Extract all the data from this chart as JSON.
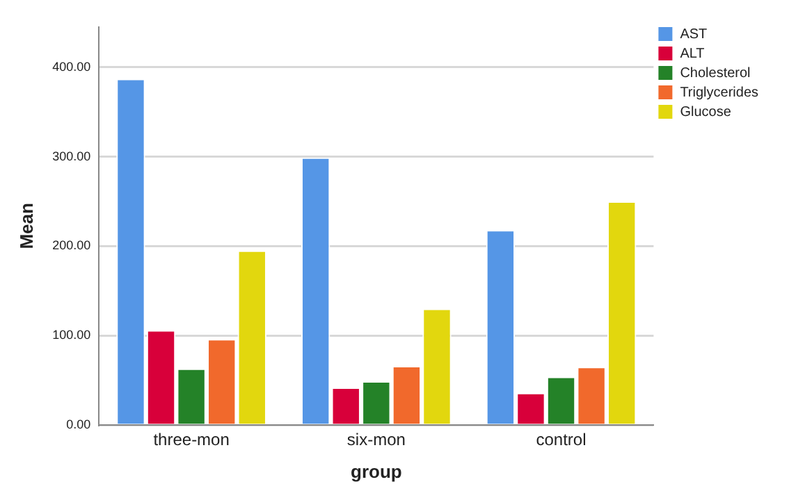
{
  "chart_data": {
    "type": "bar",
    "xlabel": "group",
    "ylabel": "Mean",
    "categories": [
      "three-mon",
      "six-mon",
      "control"
    ],
    "series": [
      {
        "name": "AST",
        "color": "#5596e6",
        "values": [
          387,
          299,
          218
        ]
      },
      {
        "name": "ALT",
        "color": "#d8003a",
        "values": [
          106,
          42,
          36
        ]
      },
      {
        "name": "Cholesterol",
        "color": "#248228",
        "values": [
          63,
          49,
          54
        ]
      },
      {
        "name": "Triglycerides",
        "color": "#f1692c",
        "values": [
          96,
          66,
          65
        ]
      },
      {
        "name": "Glucose",
        "color": "#e2d70e",
        "values": [
          195,
          130,
          250
        ]
      }
    ],
    "ylim": [
      0,
      445
    ],
    "yticks": [
      {
        "value": 0,
        "label": "0.00"
      },
      {
        "value": 100,
        "label": "100.00"
      },
      {
        "value": 200,
        "label": "200.00"
      },
      {
        "value": 300,
        "label": "300.00"
      },
      {
        "value": 400,
        "label": "400.00"
      }
    ],
    "grid": "y",
    "legend": "top right"
  }
}
